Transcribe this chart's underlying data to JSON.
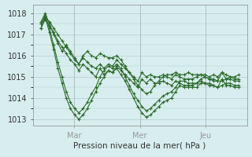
{
  "background_color": "#d8eeee",
  "grid_color": "#b0cccc",
  "line_color": "#2d6b2d",
  "marker": "+",
  "xlabel": "Pression niveau de la mer( hPa )",
  "ylim": [
    1012.7,
    1018.4
  ],
  "yticks": [
    1013,
    1014,
    1015,
    1016,
    1017,
    1018
  ],
  "xlim": [
    -0.5,
    12.5
  ],
  "xtick_positions": [
    2.0,
    6.0,
    10.0
  ],
  "day_labels": [
    "Mar",
    "Mer",
    "Jeu"
  ],
  "vline_positions": [
    2.0,
    6.0,
    10.0
  ],
  "series": [
    [
      1017.5,
      1017.8,
      1017.6,
      1017.3,
      1017.0,
      1016.7,
      1016.4,
      1016.1,
      1015.8,
      1015.6,
      1015.9,
      1015.7,
      1015.5,
      1015.4,
      1015.6,
      1015.4,
      1015.6,
      1015.5,
      1015.8,
      1015.6,
      1015.4,
      1015.2,
      1015.0,
      1014.8,
      1015.2,
      1015.0,
      1015.1,
      1015.0,
      1015.0,
      1015.1,
      1015.0,
      1014.9,
      1015.1,
      1015.0,
      1014.9,
      1014.9,
      1014.9,
      1015.0,
      1015.1,
      1015.0,
      1014.9,
      1014.9,
      1014.8,
      1015.2,
      1014.9,
      1014.9,
      1014.8,
      1014.8
    ],
    [
      1017.3,
      1017.7,
      1017.4,
      1017.1,
      1016.7,
      1016.4,
      1016.1,
      1015.8,
      1015.6,
      1015.3,
      1015.6,
      1015.4,
      1015.2,
      1015.0,
      1015.4,
      1015.1,
      1015.3,
      1015.2,
      1015.5,
      1015.3,
      1015.1,
      1014.9,
      1014.7,
      1014.5,
      1014.9,
      1014.7,
      1014.9,
      1014.7,
      1014.7,
      1014.8,
      1014.7,
      1014.6,
      1014.8,
      1014.7,
      1014.6,
      1014.6,
      1014.6,
      1014.7,
      1014.8,
      1014.7,
      1014.6,
      1014.6,
      1014.5,
      1014.9,
      1014.6,
      1014.6,
      1014.5,
      1014.5
    ],
    [
      1017.5,
      1017.9,
      1017.3,
      1016.5,
      1015.7,
      1015.0,
      1014.3,
      1013.8,
      1013.5,
      1013.3,
      1013.5,
      1013.8,
      1014.2,
      1014.5,
      1015.0,
      1015.3,
      1015.5,
      1015.4,
      1015.6,
      1015.4,
      1015.0,
      1014.6,
      1014.2,
      1013.9,
      1013.6,
      1013.4,
      1013.5,
      1013.7,
      1013.9,
      1014.1,
      1014.2,
      1014.3,
      1014.5,
      1014.8,
      1014.8,
      1014.7,
      1014.7,
      1014.7,
      1014.9,
      1015.0,
      1014.9,
      1014.8,
      1014.8,
      1014.8,
      1014.9,
      1015.0,
      1014.9,
      1014.9
    ],
    [
      1017.3,
      1017.8,
      1017.1,
      1016.3,
      1015.4,
      1014.7,
      1014.0,
      1013.5,
      1013.2,
      1013.0,
      1013.2,
      1013.5,
      1013.9,
      1014.3,
      1014.7,
      1015.0,
      1015.3,
      1015.2,
      1015.4,
      1015.1,
      1014.8,
      1014.4,
      1014.0,
      1013.6,
      1013.3,
      1013.1,
      1013.2,
      1013.4,
      1013.6,
      1013.8,
      1013.9,
      1014.0,
      1014.3,
      1014.6,
      1014.5,
      1014.5,
      1014.5,
      1014.5,
      1014.7,
      1014.7,
      1014.7,
      1014.6,
      1014.5,
      1014.6,
      1014.7,
      1014.7,
      1014.6,
      1014.6
    ],
    [
      1017.6,
      1018.0,
      1017.5,
      1017.0,
      1016.6,
      1016.2,
      1016.5,
      1016.2,
      1015.9,
      1015.6,
      1016.0,
      1016.2,
      1016.0,
      1015.9,
      1016.1,
      1016.0,
      1015.9,
      1015.9,
      1016.0,
      1015.8,
      1015.5,
      1015.2,
      1014.9,
      1014.6,
      1014.4,
      1014.2,
      1014.3,
      1014.6,
      1014.8,
      1015.0,
      1015.1,
      1015.1,
      1015.2,
      1015.1,
      1015.1,
      1015.2,
      1015.1,
      1015.1,
      1015.1,
      1015.1,
      1015.0,
      1015.1,
      1015.0,
      1015.2,
      1015.1,
      1015.0,
      1015.0,
      1015.1
    ]
  ]
}
